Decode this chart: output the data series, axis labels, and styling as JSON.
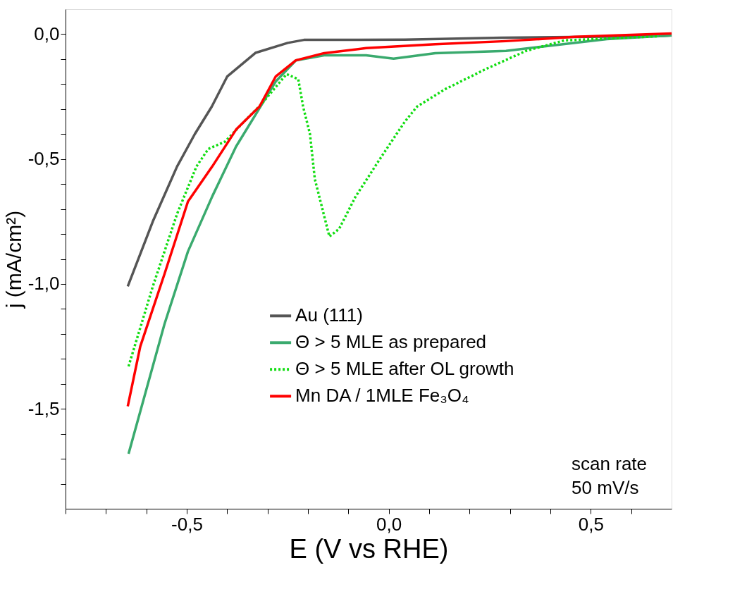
{
  "chart_data": {
    "type": "line",
    "xlabel": "E (V vs RHE)",
    "ylabel": "j (mA/cm²)",
    "xlim": [
      -0.8,
      0.7
    ],
    "ylim": [
      -1.9,
      0.1
    ],
    "xticks": [
      {
        "value": -0.8,
        "label": null
      },
      {
        "value": -0.7,
        "label": null
      },
      {
        "value": -0.6,
        "label": null
      },
      {
        "value": -0.5,
        "label": "-0,5"
      },
      {
        "value": -0.4,
        "label": null
      },
      {
        "value": -0.3,
        "label": null
      },
      {
        "value": -0.2,
        "label": null
      },
      {
        "value": -0.1,
        "label": null
      },
      {
        "value": 0.0,
        "label": "0,0"
      },
      {
        "value": 0.1,
        "label": null
      },
      {
        "value": 0.2,
        "label": null
      },
      {
        "value": 0.3,
        "label": null
      },
      {
        "value": 0.4,
        "label": null
      },
      {
        "value": 0.5,
        "label": "0,5"
      },
      {
        "value": 0.6,
        "label": null
      }
    ],
    "yticks": [
      {
        "value": -1.8,
        "label": null
      },
      {
        "value": -1.7,
        "label": null
      },
      {
        "value": -1.6,
        "label": null
      },
      {
        "value": -1.5,
        "label": "-1,5"
      },
      {
        "value": -1.4,
        "label": null
      },
      {
        "value": -1.3,
        "label": null
      },
      {
        "value": -1.2,
        "label": null
      },
      {
        "value": -1.1,
        "label": null
      },
      {
        "value": -1.0,
        "label": "-1,0"
      },
      {
        "value": -0.9,
        "label": null
      },
      {
        "value": -0.8,
        "label": null
      },
      {
        "value": -0.7,
        "label": null
      },
      {
        "value": -0.6,
        "label": null
      },
      {
        "value": -0.5,
        "label": "-0,5"
      },
      {
        "value": -0.4,
        "label": null
      },
      {
        "value": -0.3,
        "label": null
      },
      {
        "value": -0.2,
        "label": null
      },
      {
        "value": -0.1,
        "label": null
      },
      {
        "value": 0.0,
        "label": "0,0"
      }
    ],
    "grid": false,
    "legend": "bottom right",
    "marker": "none",
    "annotations": [
      "scan rate\n50 mV/s"
    ],
    "series": [
      {
        "name": "Au (111)",
        "color": "#555555",
        "line_style": "solid",
        "x": [
          -0.646,
          -0.584,
          -0.524,
          -0.48,
          -0.438,
          -0.4,
          -0.33,
          -0.25,
          -0.21,
          0.04,
          0.28,
          0.67,
          0.7
        ],
        "values": [
          -1.01,
          -0.75,
          -0.53,
          -0.4,
          -0.29,
          -0.17,
          -0.075,
          -0.035,
          -0.023,
          -0.022,
          -0.014,
          -0.008,
          -0.005
        ]
      },
      {
        "name": "Θ > 5 MLE as prepared",
        "color": "#3aaa6e",
        "line_style": "solid",
        "x": [
          -0.644,
          -0.555,
          -0.497,
          -0.437,
          -0.378,
          -0.325,
          -0.28,
          -0.23,
          -0.16,
          -0.056,
          0.012,
          0.115,
          0.29,
          0.39,
          0.54,
          0.7
        ],
        "values": [
          -1.68,
          -1.16,
          -0.87,
          -0.65,
          -0.45,
          -0.31,
          -0.19,
          -0.105,
          -0.085,
          -0.085,
          -0.098,
          -0.076,
          -0.067,
          -0.048,
          -0.02,
          -0.005
        ]
      },
      {
        "name": "Θ > 5 MLE after OL growth",
        "color": "#11dd11",
        "line_style": "dotted",
        "x": [
          -0.644,
          -0.584,
          -0.524,
          -0.476,
          -0.447,
          -0.405,
          -0.358,
          -0.315,
          -0.253,
          -0.224,
          -0.212,
          -0.195,
          -0.183,
          -0.147,
          -0.123,
          -0.082,
          -0.022,
          0.04,
          0.07,
          0.14,
          0.24,
          0.34,
          0.435,
          0.67
        ],
        "values": [
          -1.33,
          -1.01,
          -0.72,
          -0.53,
          -0.46,
          -0.43,
          -0.35,
          -0.28,
          -0.16,
          -0.18,
          -0.29,
          -0.4,
          -0.58,
          -0.81,
          -0.78,
          -0.65,
          -0.5,
          -0.35,
          -0.29,
          -0.22,
          -0.14,
          -0.067,
          -0.025,
          -0.008
        ]
      },
      {
        "name": "Mn DA / 1MLE Fe₃O₄",
        "color": "#ff0000",
        "line_style": "solid",
        "x": [
          -0.646,
          -0.615,
          -0.555,
          -0.497,
          -0.437,
          -0.377,
          -0.32,
          -0.28,
          -0.23,
          -0.16,
          -0.056,
          0.115,
          0.29,
          0.46,
          0.7
        ],
        "values": [
          -1.49,
          -1.25,
          -0.96,
          -0.67,
          -0.53,
          -0.38,
          -0.29,
          -0.17,
          -0.105,
          -0.076,
          -0.056,
          -0.04,
          -0.028,
          -0.011,
          0.003
        ]
      }
    ]
  }
}
